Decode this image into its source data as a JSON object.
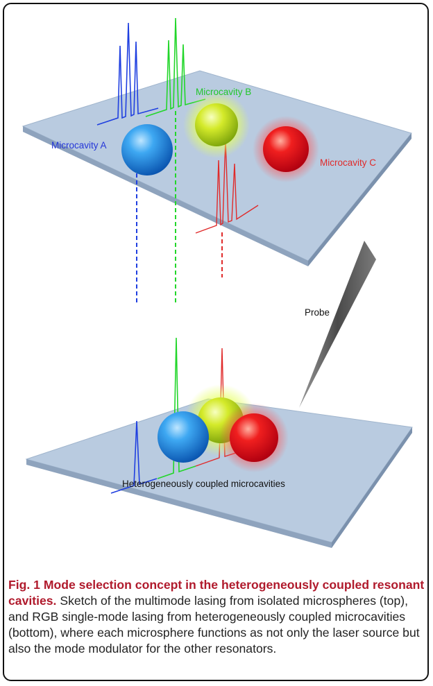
{
  "figure": {
    "labels": {
      "microcavity_a": "Microcavity A",
      "microcavity_b": "Microcavity B",
      "microcavity_c": "Microcavity C",
      "probe": "Probe",
      "coupled": "Heterogeneously coupled microcavities"
    },
    "colors": {
      "cavity_a": "#1f3fe0",
      "cavity_b": "#22d62a",
      "cavity_c": "#e02a2a",
      "platform": "#b9cbe0"
    },
    "icons": {
      "sphere_a": "blue-sphere",
      "sphere_b": "yellow-green-sphere",
      "sphere_c": "red-sphere",
      "probe": "probe-tip"
    }
  },
  "caption": {
    "lead": "Fig. 1 Mode selection concept in the heterogeneously coupled resonant cavities.",
    "body": " Sketch of the multimode lasing from isolated microspheres (top), and RGB single-mode lasing from heterogeneously coupled microcavities (bottom), where each microsphere functions as not only the laser source but also the mode modulator for the other resonators."
  }
}
